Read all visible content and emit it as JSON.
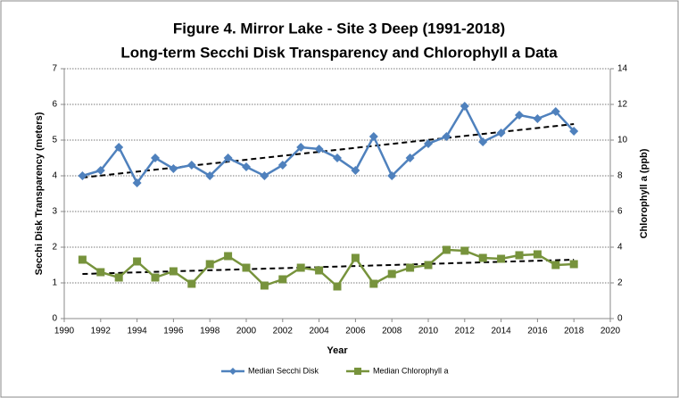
{
  "chart_data": {
    "type": "line",
    "title": "Figure 4. Mirror Lake - Site 3 Deep (1991-2018)",
    "subtitle": "Long-term Secchi Disk Transparency and Chlorophyll a Data",
    "xlabel": "Year",
    "ylabel": "Secchi Disk Transparency (meters)",
    "y2label": "Chlorophyll a (ppb)",
    "x": [
      1991,
      1992,
      1993,
      1994,
      1995,
      1996,
      1997,
      1998,
      1999,
      2000,
      2001,
      2002,
      2003,
      2004,
      2005,
      2006,
      2007,
      2008,
      2009,
      2010,
      2011,
      2012,
      2013,
      2014,
      2015,
      2016,
      2017,
      2018
    ],
    "series": [
      {
        "name": "Median Secchi Disk",
        "color": "#4f81bd",
        "marker": "diamond",
        "values": [
          4.0,
          4.15,
          4.8,
          3.8,
          4.5,
          4.2,
          4.3,
          4.0,
          4.5,
          4.25,
          4.0,
          4.3,
          4.8,
          4.75,
          4.5,
          4.15,
          5.1,
          4.0,
          4.5,
          4.9,
          5.1,
          5.95,
          4.95,
          5.2,
          5.7,
          5.6,
          5.8,
          5.25
        ],
        "trend": {
          "x": [
            1991,
            2018
          ],
          "values": [
            3.95,
            5.45
          ]
        }
      },
      {
        "name": "Median Chlorophyll a",
        "color": "#77933c",
        "marker": "square",
        "axis": "y2",
        "values": [
          3.3,
          2.6,
          2.3,
          3.2,
          2.3,
          2.65,
          1.95,
          3.05,
          3.5,
          2.85,
          1.85,
          2.2,
          2.85,
          2.7,
          1.8,
          3.4,
          1.95,
          2.5,
          2.85,
          3.0,
          3.85,
          3.8,
          3.4,
          3.35,
          3.55,
          3.6,
          3.0,
          3.05
        ],
        "trend": {
          "x": [
            1991,
            2018
          ],
          "values": [
            2.5,
            3.3
          ]
        }
      }
    ],
    "xlim": [
      1990,
      2020
    ],
    "xticks": [
      1990,
      1992,
      1994,
      1996,
      1998,
      2000,
      2002,
      2004,
      2006,
      2008,
      2010,
      2012,
      2014,
      2016,
      2018,
      2020
    ],
    "ylim": [
      0,
      7
    ],
    "yticks": [
      0,
      1,
      2,
      3,
      4,
      5,
      6,
      7
    ],
    "y2lim": [
      0,
      14
    ],
    "y2ticks": [
      0,
      2,
      4,
      6,
      8,
      10,
      12,
      14
    ],
    "grid": true,
    "legend": "bottom"
  }
}
